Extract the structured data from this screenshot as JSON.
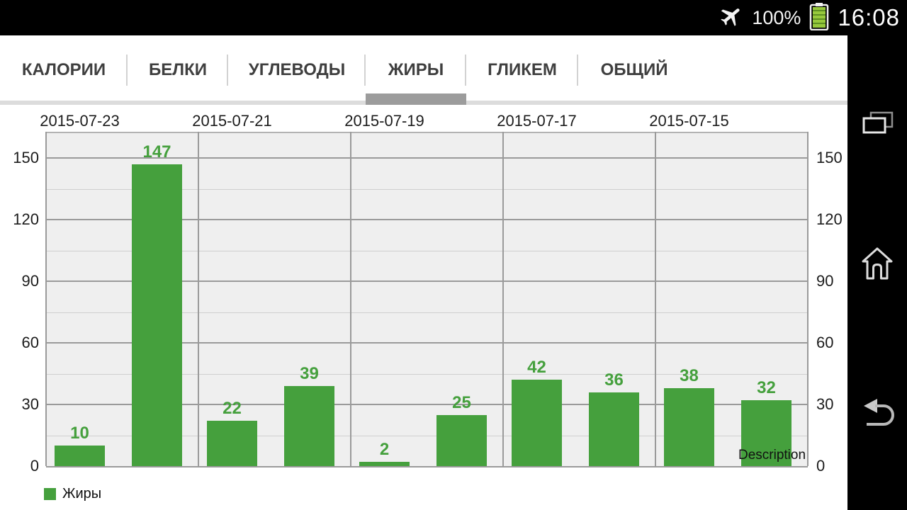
{
  "status_bar": {
    "battery_percent": "100%",
    "time": "16:08",
    "icons": [
      "airplane-icon",
      "battery-icon"
    ],
    "battery_color": "#97C93D"
  },
  "tabs": {
    "items": [
      {
        "label": "КАЛОРИИ"
      },
      {
        "label": "БЕЛКИ"
      },
      {
        "label": "УГЛЕВОДЫ"
      },
      {
        "label": "ЖИРЫ"
      },
      {
        "label": "ГЛИКЕМ"
      },
      {
        "label": "ОБЩИЙ"
      }
    ],
    "active_index": 3,
    "indicator_color": "#9c9c9c"
  },
  "chart_data": {
    "type": "bar",
    "title": "",
    "categories": [
      "2015-07-23",
      "2015-07-21",
      "2015-07-19",
      "2015-07-17",
      "2015-07-15"
    ],
    "bars_per_category": 2,
    "series": [
      {
        "name": "Жиры",
        "values": [
          10,
          147,
          22,
          39,
          2,
          25,
          42,
          36,
          38,
          32
        ]
      }
    ],
    "yticks": [
      0,
      30,
      60,
      90,
      120,
      150
    ],
    "ylim": [
      0,
      163
    ],
    "bar_color": "#45A03D",
    "grid": true,
    "legend": "Жиры",
    "legend_position": "bottom-left",
    "annotations": [
      "Description"
    ]
  },
  "legend": {
    "label": "Жиры"
  },
  "description_label": "Description",
  "nav": {
    "icons": [
      "recents-icon",
      "home-icon",
      "back-icon"
    ]
  }
}
